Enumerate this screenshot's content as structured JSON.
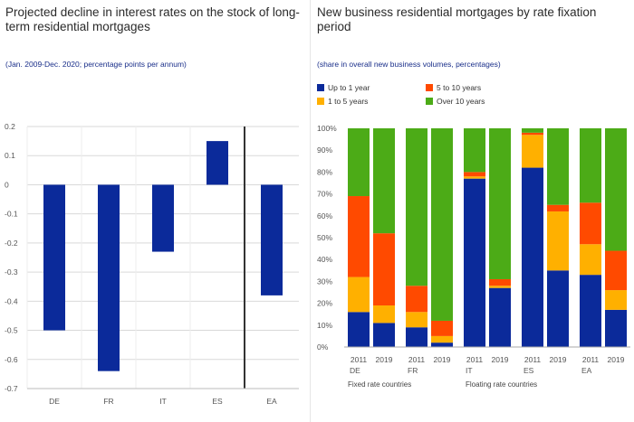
{
  "left": {
    "title": "Projected decline in interest rates on the stock of long-term residential mortgages",
    "subtitle": "(Jan. 2009-Dec. 2020; percentage points per annum)"
  },
  "right": {
    "title": "New business residential mortgages by rate fixation period",
    "subtitle": "(share in overall new business volumes, percentages)"
  },
  "colors": {
    "bar": "#0b2a9a",
    "up_to_1": "#0b2a9a",
    "one_to_5": "#ffb000",
    "five_to_10": "#ff4a00",
    "over_10": "#4cab17"
  },
  "chart_data": [
    {
      "type": "bar",
      "categories": [
        "DE",
        "FR",
        "IT",
        "ES",
        "EA"
      ],
      "values": [
        -0.5,
        -0.64,
        -0.23,
        0.15,
        -0.38
      ],
      "ylim": [
        -0.7,
        0.2
      ],
      "yticks": [
        0.2,
        0.1,
        0,
        -0.1,
        -0.2,
        -0.3,
        -0.4,
        -0.5,
        -0.6,
        -0.7
      ],
      "ytick_labels": [
        "0.2",
        "0.1",
        "0",
        "-0.1",
        "-0.2",
        "-0.3",
        "-0.4",
        "-0.5",
        "-0.6",
        "-0.7"
      ],
      "grid": true,
      "divider_before": "EA"
    },
    {
      "type": "bar",
      "stacked": true,
      "legend_position": "top",
      "countries": [
        "DE",
        "FR",
        "IT",
        "ES",
        "EA"
      ],
      "years": [
        "2011",
        "2019"
      ],
      "group_labels": [
        "Fixed rate countries",
        "Floating rate countries"
      ],
      "ylim": [
        0,
        100
      ],
      "ytick_labels": [
        "0%",
        "10%",
        "20%",
        "30%",
        "40%",
        "50%",
        "60%",
        "70%",
        "80%",
        "90%",
        "100%"
      ],
      "series": [
        {
          "name": "Up to 1 year",
          "values": [
            16,
            11,
            9,
            2,
            77,
            27,
            82,
            35,
            33,
            17
          ]
        },
        {
          "name": "1 to 5 years",
          "values": [
            16,
            8,
            7,
            3,
            1,
            1,
            15,
            27,
            14,
            9
          ]
        },
        {
          "name": "5 to 10 years",
          "values": [
            37,
            33,
            12,
            7,
            2,
            3,
            1,
            3,
            19,
            18
          ]
        },
        {
          "name": "Over 10 years",
          "values": [
            31,
            48,
            72,
            88,
            20,
            69,
            2,
            35,
            34,
            56
          ]
        }
      ]
    }
  ]
}
